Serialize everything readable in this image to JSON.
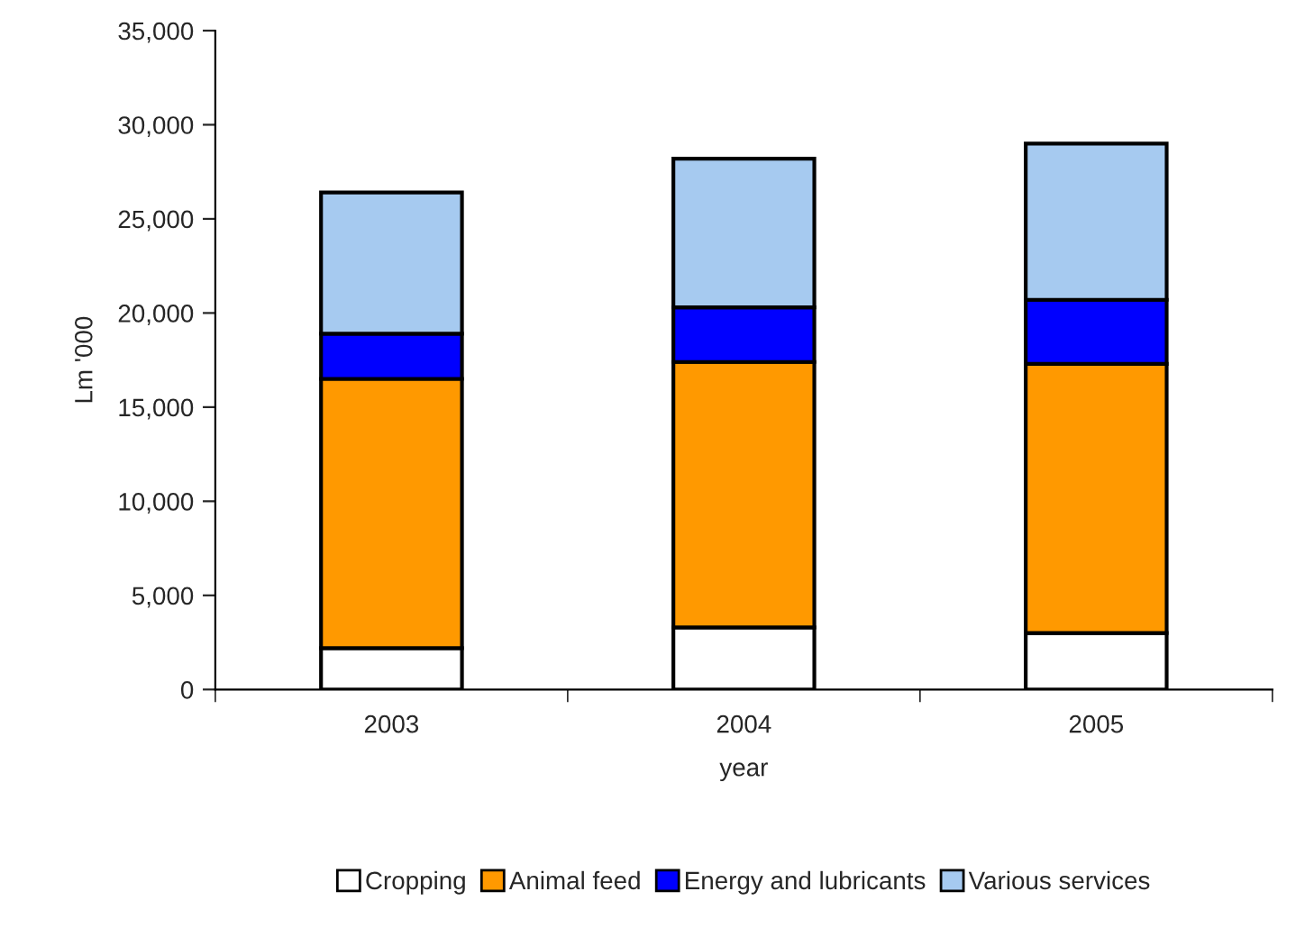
{
  "chart_data": {
    "type": "bar",
    "stacked": true,
    "xlabel": "year",
    "ylabel": "Lm '000",
    "categories": [
      "2003",
      "2004",
      "2005"
    ],
    "series": [
      {
        "name": "Cropping",
        "color": "#ffffff",
        "values": [
          2200,
          3300,
          3000
        ]
      },
      {
        "name": "Animal feed",
        "color": "#ff9900",
        "values": [
          14300,
          14100,
          14300
        ]
      },
      {
        "name": "Energy and lubricants",
        "color": "#0000ff",
        "values": [
          2400,
          2900,
          3400
        ]
      },
      {
        "name": "Various services",
        "color": "#a6caf0",
        "values": [
          7500,
          7900,
          8300
        ]
      }
    ],
    "ylim": [
      0,
      35000
    ],
    "yticks": [
      {
        "value": 0,
        "label": "0"
      },
      {
        "value": 5000,
        "label": "5,000"
      },
      {
        "value": 10000,
        "label": "10,000"
      },
      {
        "value": 15000,
        "label": "15,000"
      },
      {
        "value": 20000,
        "label": "20,000"
      },
      {
        "value": 25000,
        "label": "25,000"
      },
      {
        "value": 30000,
        "label": "30,000"
      },
      {
        "value": 35000,
        "label": "35,000"
      }
    ],
    "grid": false,
    "legend": "bottom"
  }
}
